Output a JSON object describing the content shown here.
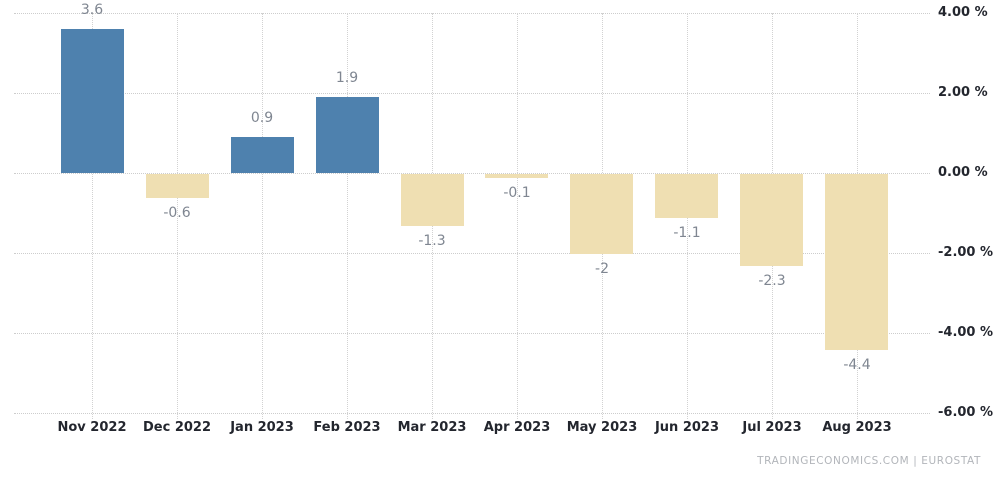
{
  "chart_data": {
    "type": "bar",
    "categories": [
      "Nov 2022",
      "Dec 2022",
      "Jan 2023",
      "Feb 2023",
      "Mar 2023",
      "Apr 2023",
      "May 2023",
      "Jun 2023",
      "Jul 2023",
      "Aug 2023"
    ],
    "values": [
      3.6,
      -0.6,
      0.9,
      1.9,
      -1.3,
      -0.1,
      -2,
      -1.1,
      -2.3,
      -4.4
    ],
    "value_labels": [
      "3.6",
      "-0.6",
      "0.9",
      "1.9",
      "-1.3",
      "-0.1",
      "-2",
      "-1.1",
      "-2.3",
      "-4.4"
    ],
    "title": "",
    "xlabel": "",
    "ylabel": "",
    "ylim": [
      -6,
      4
    ],
    "ytick_step": 2,
    "yticks": [
      4,
      2,
      0,
      -2,
      -4,
      -6
    ],
    "ytick_labels": [
      "4.00 %",
      "2.00 %",
      "0.00 %",
      "-2.00 %",
      "-4.00 %",
      "-6.00 %"
    ],
    "grid": true,
    "legend": "none",
    "colors": {
      "positive_bar": "#4e81ae",
      "negative_bar": "#efdfb2",
      "gridline": "#cdcdcd",
      "value_label": "#7f8691",
      "axis_label": "#23262e"
    }
  },
  "footer": {
    "source": "TRADINGECONOMICS.COM  |  EUROSTAT"
  }
}
